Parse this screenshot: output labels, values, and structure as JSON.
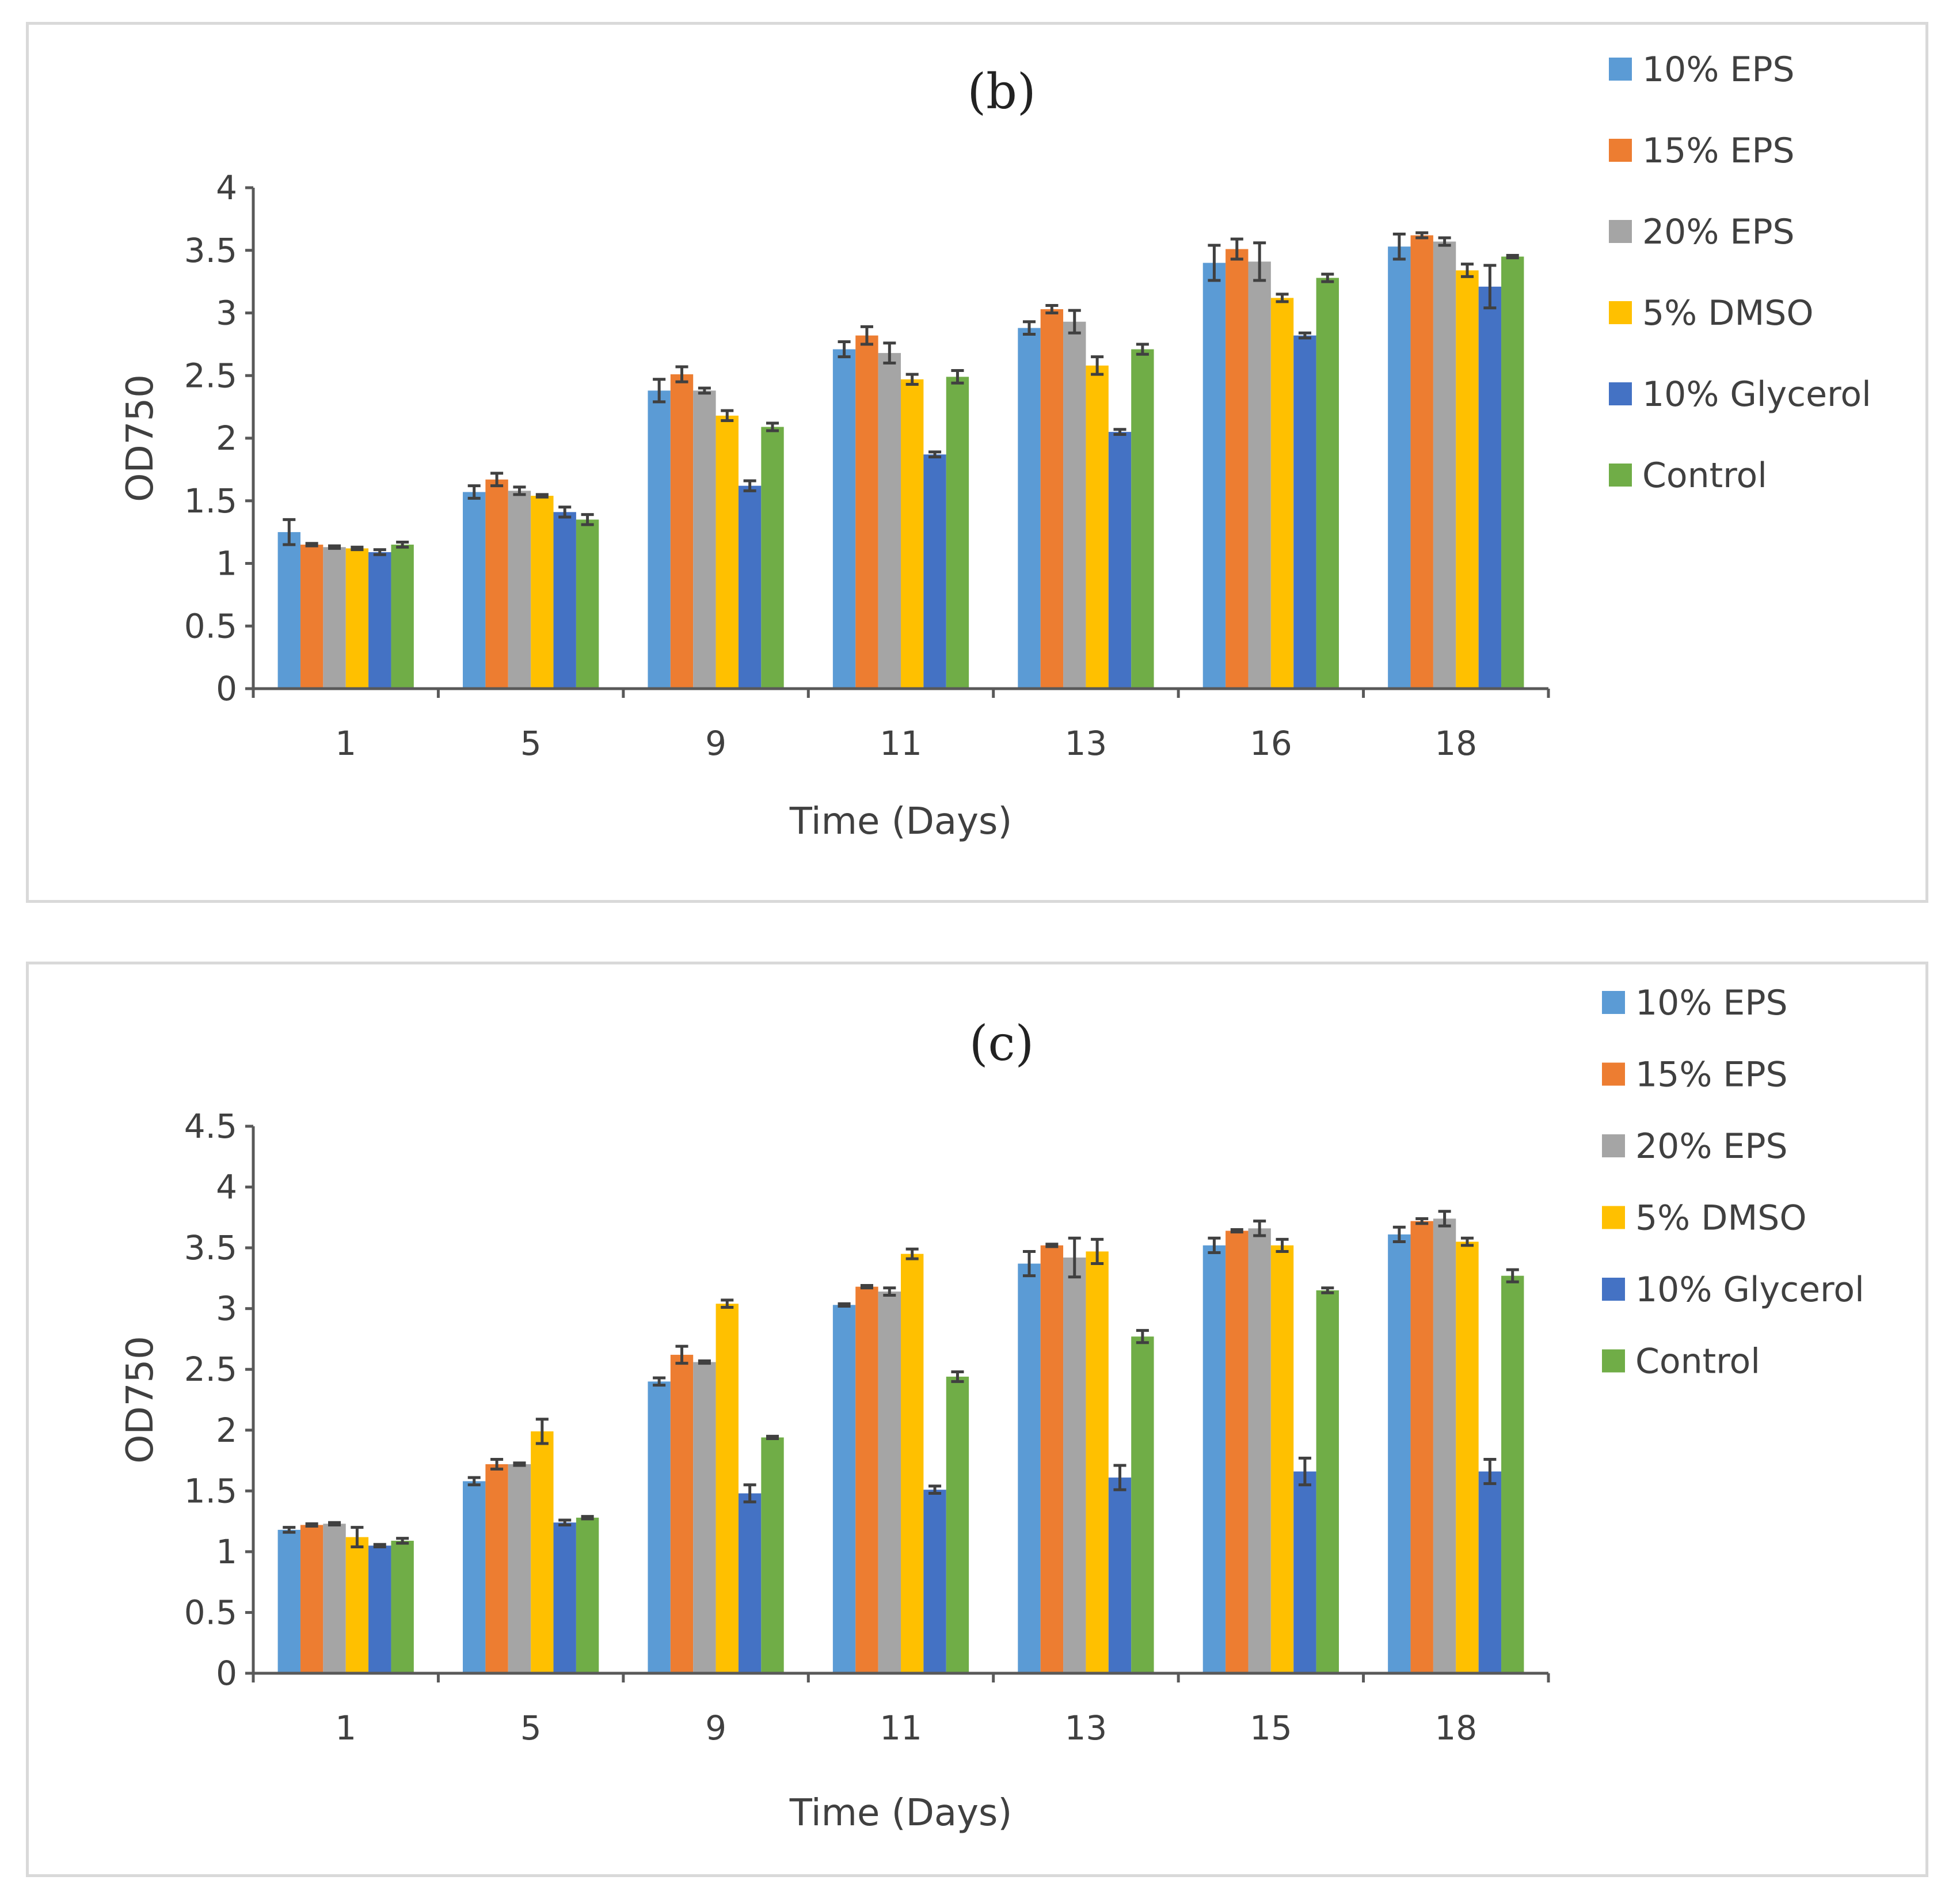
{
  "colors": {
    "10% EPS": "#5b9bd5",
    "15% EPS": "#ed7d31",
    "20% EPS": "#a5a5a5",
    "5% DMSO": "#ffc000",
    "10% Glycerol": "#4472c4",
    "Control": "#70ad47"
  },
  "chart_data": [
    {
      "type": "bar",
      "title": "(b)",
      "xlabel": "Time (Days)",
      "ylabel": "OD750",
      "ylim": [
        0,
        4
      ],
      "yticks": [
        "0",
        "0.5",
        "1",
        "1.5",
        "2",
        "2.5",
        "3",
        "3.5",
        "4"
      ],
      "legend_position": "right",
      "categories": [
        "1",
        "5",
        "9",
        "11",
        "13",
        "16",
        "18"
      ],
      "series": [
        {
          "name": "10% EPS",
          "values": [
            1.25,
            1.57,
            2.38,
            2.71,
            2.88,
            3.4,
            3.53
          ],
          "errors": [
            0.1,
            0.05,
            0.09,
            0.06,
            0.05,
            0.14,
            0.1
          ]
        },
        {
          "name": "15% EPS",
          "values": [
            1.15,
            1.67,
            2.51,
            2.82,
            3.03,
            3.51,
            3.62
          ],
          "errors": [
            0.01,
            0.05,
            0.06,
            0.07,
            0.03,
            0.08,
            0.02
          ]
        },
        {
          "name": "20% EPS",
          "values": [
            1.13,
            1.58,
            2.38,
            2.68,
            2.93,
            3.41,
            3.57
          ],
          "errors": [
            0.01,
            0.03,
            0.02,
            0.08,
            0.09,
            0.15,
            0.03
          ]
        },
        {
          "name": "5% DMSO",
          "values": [
            1.12,
            1.54,
            2.18,
            2.47,
            2.58,
            3.12,
            3.34
          ],
          "errors": [
            0.01,
            0.01,
            0.04,
            0.04,
            0.07,
            0.03,
            0.05
          ]
        },
        {
          "name": "10% Glycerol",
          "values": [
            1.09,
            1.41,
            1.62,
            1.87,
            2.05,
            2.82,
            3.21
          ],
          "errors": [
            0.02,
            0.04,
            0.04,
            0.02,
            0.02,
            0.02,
            0.17
          ]
        },
        {
          "name": "Control",
          "values": [
            1.15,
            1.35,
            2.09,
            2.49,
            2.71,
            3.28,
            3.45
          ],
          "errors": [
            0.02,
            0.04,
            0.03,
            0.05,
            0.04,
            0.03,
            0.01
          ]
        }
      ]
    },
    {
      "type": "bar",
      "title": "(c)",
      "xlabel": "Time (Days)",
      "ylabel": "OD750",
      "ylim": [
        0,
        4.5
      ],
      "yticks": [
        "0",
        "0.5",
        "1",
        "1.5",
        "2",
        "2.5",
        "3",
        "3.5",
        "4",
        "4.5"
      ],
      "legend_position": "right",
      "categories": [
        "1",
        "5",
        "9",
        "11",
        "13",
        "15",
        "18"
      ],
      "series": [
        {
          "name": "10% EPS",
          "values": [
            1.18,
            1.58,
            2.4,
            3.03,
            3.37,
            3.52,
            3.61
          ],
          "errors": [
            0.02,
            0.03,
            0.03,
            0.01,
            0.1,
            0.06,
            0.06
          ]
        },
        {
          "name": "15% EPS",
          "values": [
            1.22,
            1.72,
            2.62,
            3.18,
            3.52,
            3.64,
            3.72
          ],
          "errors": [
            0.01,
            0.04,
            0.07,
            0.01,
            0.01,
            0.01,
            0.02
          ]
        },
        {
          "name": "20% EPS",
          "values": [
            1.23,
            1.72,
            2.56,
            3.14,
            3.42,
            3.66,
            3.74
          ],
          "errors": [
            0.01,
            0.01,
            0.01,
            0.03,
            0.16,
            0.06,
            0.06
          ]
        },
        {
          "name": "5% DMSO",
          "values": [
            1.12,
            1.99,
            3.04,
            3.45,
            3.47,
            3.52,
            3.55
          ],
          "errors": [
            0.08,
            0.1,
            0.03,
            0.04,
            0.1,
            0.05,
            0.03
          ]
        },
        {
          "name": "10% Glycerol",
          "values": [
            1.05,
            1.24,
            1.48,
            1.51,
            1.61,
            1.66,
            1.66
          ],
          "errors": [
            0.01,
            0.02,
            0.07,
            0.03,
            0.1,
            0.11,
            0.1
          ]
        },
        {
          "name": "Control",
          "values": [
            1.09,
            1.28,
            1.94,
            2.44,
            2.77,
            3.15,
            3.27
          ],
          "errors": [
            0.02,
            0.01,
            0.01,
            0.04,
            0.05,
            0.02,
            0.05
          ]
        }
      ]
    }
  ]
}
